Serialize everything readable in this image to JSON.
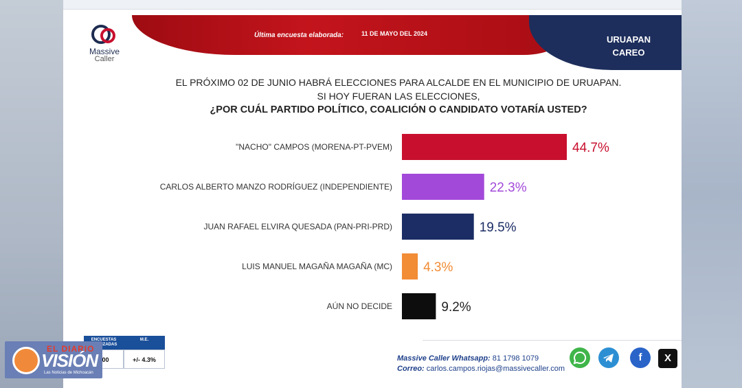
{
  "header": {
    "survey_label": "Última encuesta elaborada:",
    "survey_date": "11 DE MAYO DEL 2024",
    "city": "URUAPAN",
    "subtitle": "CAREO"
  },
  "logo": {
    "line1": "Massive",
    "line2": "Caller"
  },
  "question": {
    "line1": "EL PRÓXIMO 02 DE JUNIO HABRÁ ELECCIONES PARA ALCALDE EN EL MUNICIPIO DE URUAPAN.",
    "line2": "SI HOY FUERAN LAS ELECCIONES,",
    "line3": "¿POR CUÁL PARTIDO POLÍTICO, COALICIÓN O CANDIDATO VOTARÍA USTED?"
  },
  "chart_data": {
    "type": "bar",
    "orientation": "horizontal",
    "categories": [
      "\"NACHO\" CAMPOS (MORENA-PT-PVEM)",
      "CARLOS ALBERTO MANZO RODRÍGUEZ (INDEPENDIENTE)",
      "JUAN RAFAEL ELVIRA QUESADA (PAN-PRI-PRD)",
      "LUIS MANUEL MAGAÑA MAGAÑA (MC)",
      "AÚN NO DECIDE"
    ],
    "values": [
      44.7,
      22.3,
      19.5,
      4.3,
      9.2
    ],
    "value_labels": [
      "44.7%",
      "22.3%",
      "19.5%",
      "4.3%",
      "9.2%"
    ],
    "colors": [
      "#c8102e",
      "#a249d9",
      "#1b2d64",
      "#f28c35",
      "#0d0d0d"
    ],
    "label_colors": [
      "#c8102e",
      "#a249d9",
      "#1b2d64",
      "#f28c35",
      "#222222"
    ],
    "xlim": [
      0,
      50
    ],
    "grid": false,
    "legend": "none"
  },
  "footer": {
    "table_header1": "ENCUESTAS REALIZADAS",
    "table_header2": "M.E.",
    "table_value1": "800",
    "table_value2": "+/- 4.3%",
    "whatsapp_label": "Massive Caller Whatsapp:",
    "whatsapp_number": "81 1798 1079",
    "email_label": "Correo:",
    "email": "carlos.campos.riojas@massivecaller.com"
  },
  "watermark": {
    "top": "EL DIARIO",
    "main": "VISIÓN",
    "sub": "Las Noticias de Michoacán"
  },
  "social": {
    "whatsapp_icon": "whatsapp-icon",
    "telegram_icon": "telegram-icon",
    "facebook_icon": "facebook-icon",
    "x_icon": "x-icon",
    "facebook_glyph": "f",
    "x_glyph": "X"
  }
}
